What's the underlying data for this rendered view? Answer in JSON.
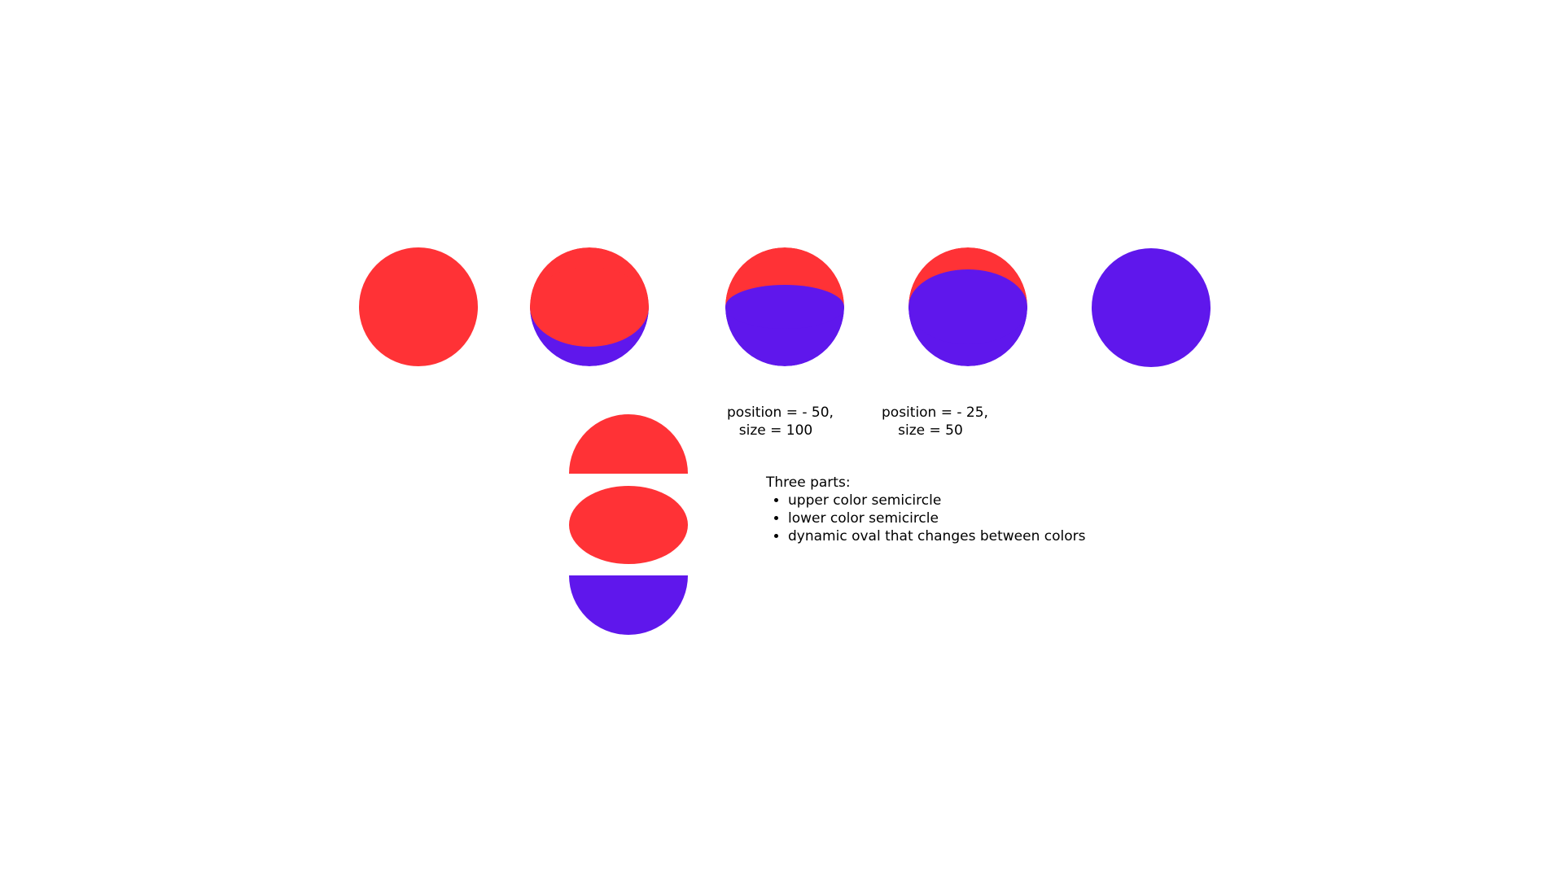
{
  "colors": {
    "red": "#ff3236",
    "purple": "#5f17ec"
  },
  "annotations": {
    "stage_3": {
      "line1": "position = - 50,",
      "line2": "size = 100"
    },
    "stage_4": {
      "line1": "position = - 25,",
      "line2": "size = 50"
    }
  },
  "parts_note": {
    "heading": "Three parts:",
    "items": [
      "upper color semicircle",
      "lower color semicircle",
      "dynamic oval that changes between colors"
    ]
  }
}
